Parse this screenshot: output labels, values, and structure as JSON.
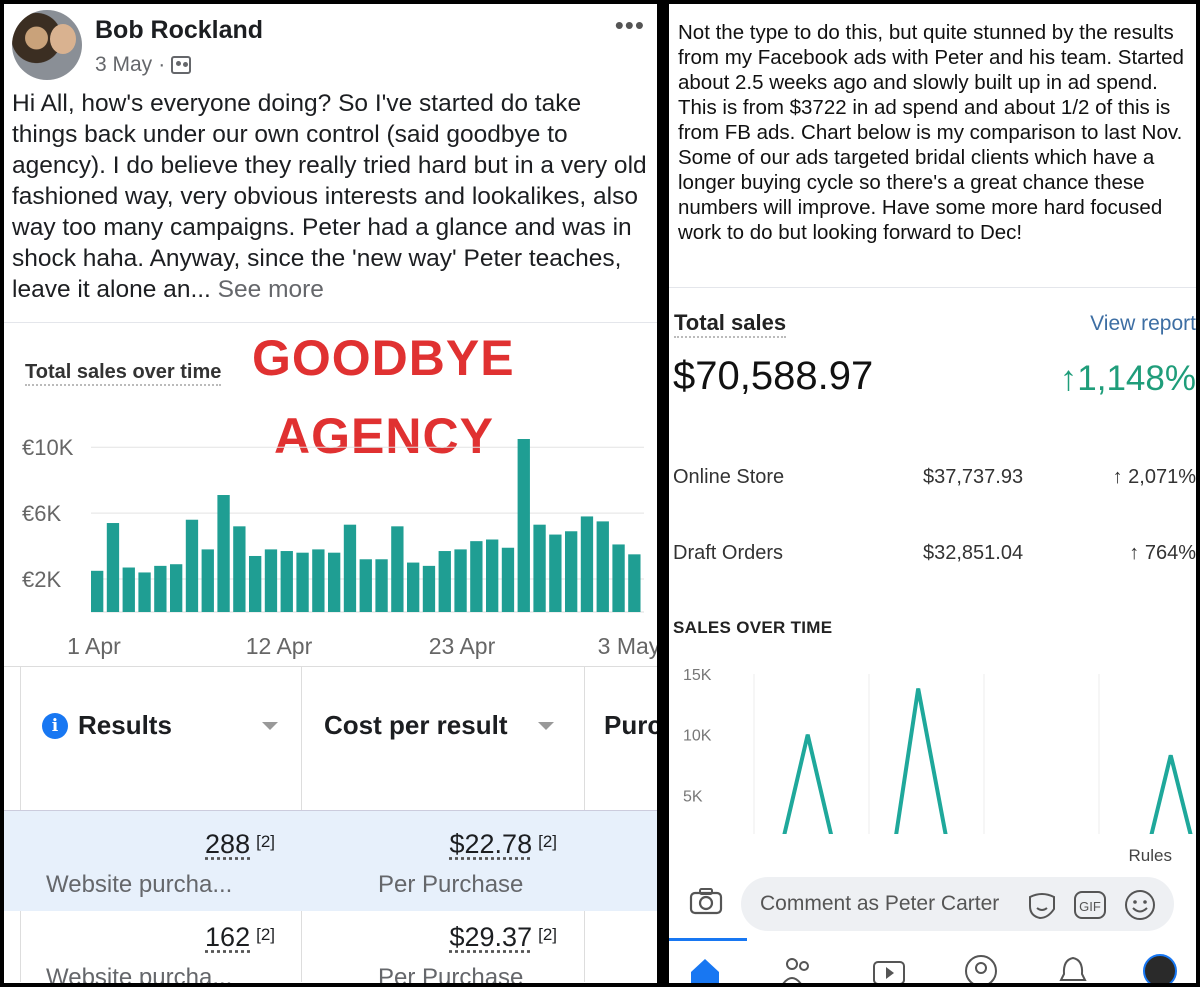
{
  "left_post": {
    "author": "Bob Rockland",
    "date": "3 May",
    "separator": "·",
    "body": "Hi All, how's everyone doing? So I've started do take things back under our own control (said goodbye to agency). I do believe they really tried hard but in a very old fashioned way, very obvious interests and lookalikes, also way too many campaigns. Peter had a glance and was in shock haha. Anyway, since the 'new way' Peter teaches, leave it alone an...",
    "see_more": "See more",
    "overlay_line1": "GOODBYE",
    "overlay_line2": "AGENCY",
    "chart_title": "Total sales over time",
    "table": {
      "col1": "Results",
      "col2": "Cost per result",
      "col3": "Purc",
      "rows": [
        {
          "result": "288",
          "result_note": "[2]",
          "result_sub": "Website purcha...",
          "cost": "$22.78",
          "cost_note": "[2]",
          "cost_sub": "Per Purchase"
        },
        {
          "result": "162",
          "result_note": "[2]",
          "result_sub": "Website purcha...",
          "cost": "$29.37",
          "cost_note": "[2]",
          "cost_sub": "Per Purchase"
        }
      ]
    }
  },
  "right_post": {
    "body": "Not the type to do this, but quite stunned by the results from my Facebook ads with Peter and his team. Started about 2.5 weeks ago and slowly built up in ad spend. This is from $3722 in ad spend and about 1/2 of this is from FB ads. Chart below is my comparison to last Nov.  Some of our ads targeted bridal clients which have a longer buying cycle so there's a great chance these numbers will improve. Have some more hard focused work to do but looking forward to Dec!",
    "total_label": "Total sales",
    "view_report": "View report",
    "total_value": "$70,588.97",
    "total_change": "↑1,148%",
    "breakdown": [
      {
        "label": "Online Store",
        "amount": "$37,737.93",
        "change": "↑ 2,071%"
      },
      {
        "label": "Draft Orders",
        "amount": "$32,851.04",
        "change": "↑ 764%"
      }
    ],
    "sales_over_time": "SALES OVER TIME",
    "rules": "Rules",
    "comment_placeholder": "Comment as Peter Carter"
  },
  "colors": {
    "bar": "#1f9e93",
    "line": "#1fa89b",
    "overlay": "#e03131",
    "accent": "#1877f2"
  },
  "chart_data": [
    {
      "type": "bar",
      "title": "Total sales over time",
      "y_ticks": [
        "€10K",
        "€6K",
        "€2K"
      ],
      "x_ticks": [
        "1 Apr",
        "12 Apr",
        "23 Apr",
        "3 May"
      ],
      "ylim": [
        0,
        10500
      ],
      "values": [
        2500,
        5400,
        2700,
        2400,
        2800,
        2900,
        5600,
        3800,
        7100,
        5200,
        3400,
        3800,
        3700,
        3600,
        3800,
        3600,
        5300,
        3200,
        3200,
        5200,
        3000,
        2800,
        3700,
        3800,
        4300,
        4400,
        3900,
        10500,
        5300,
        4700,
        4900,
        5800,
        5500,
        4100,
        3500
      ]
    },
    {
      "type": "line",
      "title": "SALES OVER TIME",
      "y_ticks": [
        "15K",
        "10K",
        "5K"
      ],
      "ylim": [
        0,
        15000
      ],
      "x": [
        0,
        8,
        17,
        26,
        35,
        44,
        52,
        62,
        70,
        80,
        90,
        98,
        108,
        118,
        125,
        132,
        140
      ],
      "values": [
        0,
        0,
        10000,
        0,
        0,
        0,
        13800,
        0,
        0,
        0,
        0,
        0,
        0,
        0,
        800,
        8300,
        0
      ],
      "grid": true
    }
  ]
}
